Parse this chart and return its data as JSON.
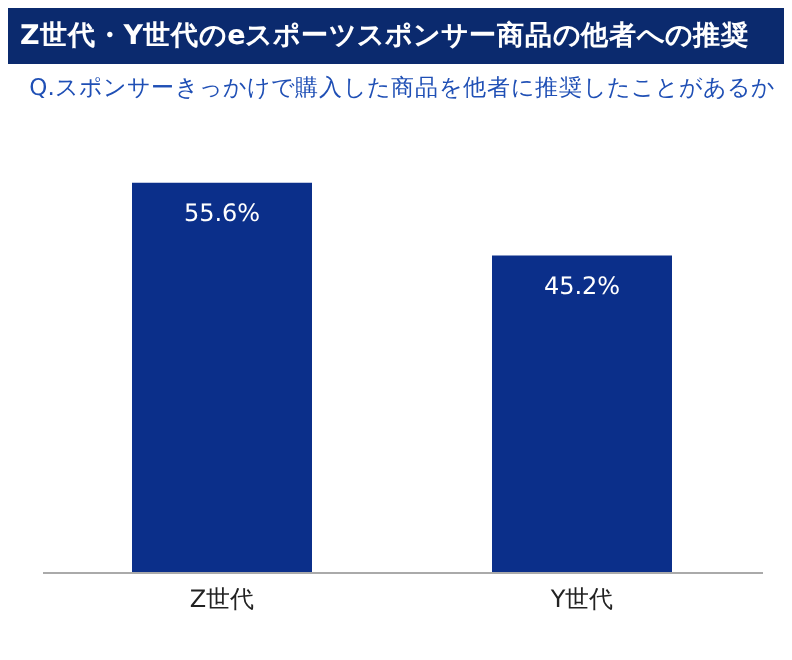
{
  "chart_data": {
    "type": "bar",
    "title": "Z世代・Y世代のeスポーツスポンサー商品の他者への推奨",
    "subtitle": "Q.スポンサーきっかけで購入した商品を他者に推奨したことがあるか",
    "categories": [
      "Z世代",
      "Y世代"
    ],
    "values": [
      55.6,
      45.2
    ],
    "color": "#0b2f8a",
    "data_labels": true,
    "value_labels": [
      "55.6%",
      "45.2%"
    ]
  }
}
